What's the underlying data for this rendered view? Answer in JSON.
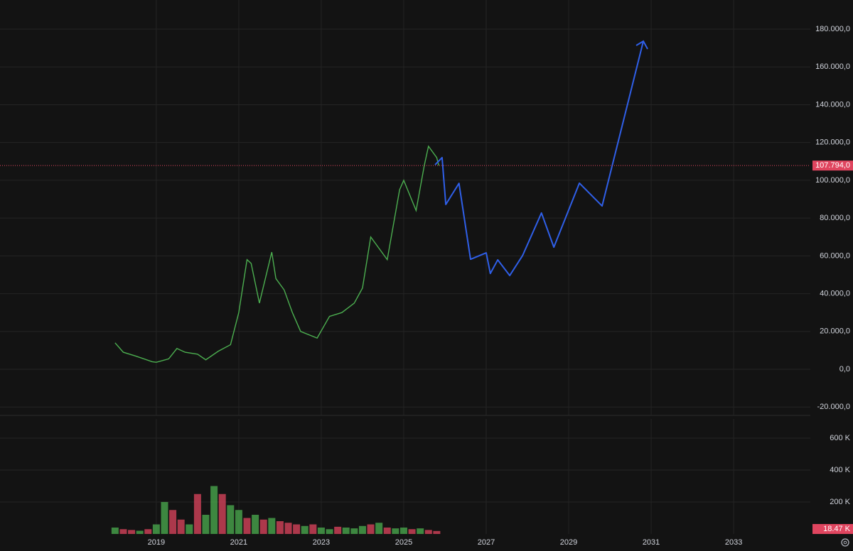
{
  "chart_data": [
    {
      "type": "line",
      "xlim": [
        2015.21,
        2034.86
      ],
      "xticks": [
        2019,
        2021,
        2023,
        2025,
        2027,
        2029,
        2031,
        2033
      ],
      "ylim": [
        -24400,
        195400
      ],
      "yticks": [
        {
          "value": -20000,
          "label": "-20.000,0"
        },
        {
          "value": 0,
          "label": "0,0"
        },
        {
          "value": 20000,
          "label": "20.000,0"
        },
        {
          "value": 40000,
          "label": "40.000,0"
        },
        {
          "value": 60000,
          "label": "60.000,0"
        },
        {
          "value": 80000,
          "label": "80.000,0"
        },
        {
          "value": 100000,
          "label": "100.000,0"
        },
        {
          "value": 120000,
          "label": "120.000,0"
        },
        {
          "value": 140000,
          "label": "140.000,0"
        },
        {
          "value": 160000,
          "label": "160.000,0"
        },
        {
          "value": 180000,
          "label": "180.000,0"
        }
      ],
      "grid": true,
      "x": [
        2018.0,
        2018.2,
        2018.5,
        2018.9,
        2019.0,
        2019.3,
        2019.5,
        2019.7,
        2020.0,
        2020.2,
        2020.5,
        2020.8,
        2021.0,
        2021.2,
        2021.3,
        2021.5,
        2021.8,
        2021.9,
        2022.1,
        2022.3,
        2022.5,
        2022.9,
        2023.2,
        2023.5,
        2023.8,
        2024.0,
        2024.2,
        2024.6,
        2024.9,
        2025.0,
        2025.3,
        2025.5,
        2025.6,
        2025.8,
        2025.85
      ],
      "series": [
        {
          "color": "#4caf50",
          "values": [
            14000,
            9000,
            7000,
            4000,
            3700,
            5500,
            11000,
            9000,
            8000,
            5000,
            9500,
            13000,
            30000,
            58000,
            56000,
            35000,
            62000,
            48000,
            42000,
            30000,
            20000,
            16500,
            28000,
            30000,
            35000,
            43000,
            70000,
            58000,
            95000,
            100000,
            84000,
            108000,
            118000,
            112000,
            107794
          ]
        }
      ],
      "forecast": {
        "color": "#2f5fe8",
        "x": [
          2025.76,
          2025.93,
          2026.02,
          2026.34,
          2026.62,
          2027.0,
          2027.1,
          2027.28,
          2027.57,
          2027.88,
          2028.34,
          2028.64,
          2029.26,
          2029.81,
          2030.81
        ],
        "values": [
          108200,
          112000,
          87200,
          98400,
          58200,
          61600,
          50700,
          57900,
          49600,
          60100,
          82700,
          64600,
          98500,
          86400,
          173600
        ]
      },
      "last_price": {
        "value": 107794,
        "label": "107.794,0",
        "color": "#e0455f"
      }
    },
    {
      "type": "bar",
      "xlim": [
        2015.21,
        2034.86
      ],
      "ylim": [
        0,
        720000
      ],
      "yticks": [
        {
          "value": 200000,
          "label": "200 K"
        },
        {
          "value": 400000,
          "label": "400 K"
        },
        {
          "value": 600000,
          "label": "600 K"
        }
      ],
      "grid": true,
      "x": [
        2018.0,
        2018.2,
        2018.4,
        2018.6,
        2018.8,
        2019.0,
        2019.2,
        2019.4,
        2019.6,
        2019.8,
        2020.0,
        2020.2,
        2020.4,
        2020.6,
        2020.8,
        2021.0,
        2021.2,
        2021.4,
        2021.6,
        2021.8,
        2022.0,
        2022.2,
        2022.4,
        2022.6,
        2022.8,
        2023.0,
        2023.2,
        2023.4,
        2023.6,
        2023.8,
        2024.0,
        2024.2,
        2024.4,
        2024.6,
        2024.8,
        2025.0,
        2025.2,
        2025.4,
        2025.6,
        2025.8
      ],
      "values": [
        40000,
        30000,
        25000,
        20000,
        30000,
        60000,
        200000,
        150000,
        90000,
        60000,
        250000,
        120000,
        300000,
        250000,
        180000,
        150000,
        100000,
        120000,
        90000,
        100000,
        80000,
        70000,
        60000,
        50000,
        60000,
        40000,
        30000,
        45000,
        40000,
        35000,
        50000,
        60000,
        70000,
        40000,
        35000,
        40000,
        30000,
        35000,
        25000,
        18470
      ],
      "colors": [
        "#4caf50",
        "#e0455f",
        "#e0455f",
        "#4caf50",
        "#e0455f",
        "#4caf50",
        "#4caf50",
        "#e0455f",
        "#e0455f",
        "#4caf50",
        "#e0455f",
        "#4caf50",
        "#4caf50",
        "#e0455f",
        "#4caf50",
        "#4caf50",
        "#e0455f",
        "#4caf50",
        "#e0455f",
        "#4caf50",
        "#e0455f",
        "#e0455f",
        "#e0455f",
        "#4caf50",
        "#e0455f",
        "#4caf50",
        "#4caf50",
        "#e0455f",
        "#4caf50",
        "#4caf50",
        "#4caf50",
        "#e0455f",
        "#4caf50",
        "#e0455f",
        "#4caf50",
        "#4caf50",
        "#e0455f",
        "#4caf50",
        "#e0455f",
        "#e0455f"
      ],
      "last_value": {
        "value": 18470,
        "label": "18.47 K",
        "color": "#e0455f"
      }
    }
  ]
}
